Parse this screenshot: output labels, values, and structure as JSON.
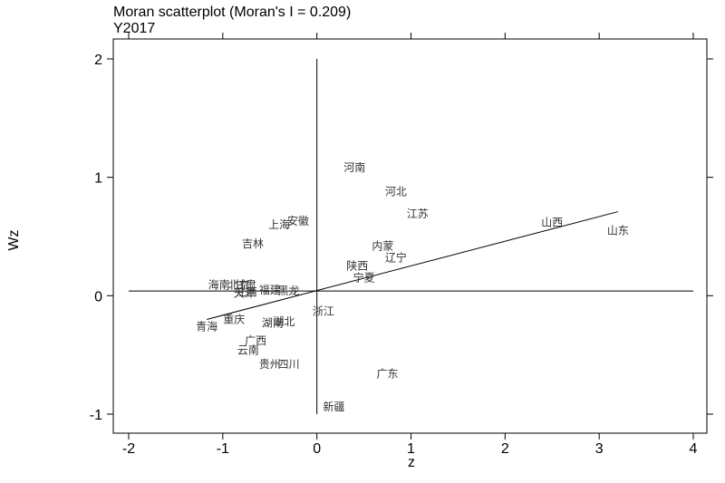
{
  "chart_data": {
    "type": "scatter",
    "title": "Moran scatterplot (Moran's I = 0.209)",
    "subtitle": "Y2017",
    "xlabel": "z",
    "ylabel": "Wz",
    "xlim": [
      -2.1,
      4.1
    ],
    "ylim": [
      -1.1,
      2.1
    ],
    "xticks": [
      -2,
      -1,
      0,
      1,
      2,
      3,
      4
    ],
    "xtick_labels": [
      "-2",
      "-1",
      "0",
      "1",
      "2",
      "3",
      "4"
    ],
    "yticks": [
      -1,
      0,
      1,
      2
    ],
    "ytick_labels": [
      "-1",
      "0",
      "1",
      "2"
    ],
    "grid": false,
    "reference_lines": {
      "vertical_x": 0,
      "horizontal_y": 0.04,
      "vertical_range": [
        -1,
        2
      ],
      "horizontal_range": [
        -2,
        4
      ]
    },
    "regression_line": {
      "x1": -1.17,
      "y1": -0.2,
      "x2": 3.2,
      "y2": 0.71
    },
    "points": [
      {
        "label": "河南",
        "x": 0.4,
        "y": 1.08
      },
      {
        "label": "河北",
        "x": 0.84,
        "y": 0.88
      },
      {
        "label": "江苏",
        "x": 1.07,
        "y": 0.69
      },
      {
        "label": "山西",
        "x": 2.5,
        "y": 0.62
      },
      {
        "label": "山东",
        "x": 3.2,
        "y": 0.55
      },
      {
        "label": "安徽",
        "x": -0.2,
        "y": 0.63
      },
      {
        "label": "上海",
        "x": -0.4,
        "y": 0.6
      },
      {
        "label": "吉林",
        "x": -0.68,
        "y": 0.44
      },
      {
        "label": "内蒙",
        "x": 0.7,
        "y": 0.42
      },
      {
        "label": "辽宁",
        "x": 0.84,
        "y": 0.32
      },
      {
        "label": "陕西",
        "x": 0.43,
        "y": 0.25
      },
      {
        "label": "宁夏",
        "x": 0.5,
        "y": 0.15
      },
      {
        "label": "海南",
        "x": -1.04,
        "y": 0.09
      },
      {
        "label": "北京",
        "x": -0.83,
        "y": 0.09
      },
      {
        "label": "甘肃",
        "x": -0.76,
        "y": 0.09
      },
      {
        "label": "天津",
        "x": -0.77,
        "y": 0.02
      },
      {
        "label": "江西",
        "x": -0.75,
        "y": 0.03
      },
      {
        "label": "福建",
        "x": -0.5,
        "y": 0.05
      },
      {
        "label": "黑龙",
        "x": -0.3,
        "y": 0.04
      },
      {
        "label": "浙江",
        "x": 0.07,
        "y": -0.13
      },
      {
        "label": "重庆",
        "x": -0.88,
        "y": -0.2
      },
      {
        "label": "青海",
        "x": -1.17,
        "y": -0.26
      },
      {
        "label": "湖北",
        "x": -0.35,
        "y": -0.22
      },
      {
        "label": "湖南",
        "x": -0.47,
        "y": -0.23
      },
      {
        "label": "广西",
        "x": -0.65,
        "y": -0.38
      },
      {
        "label": "云南",
        "x": -0.73,
        "y": -0.46
      },
      {
        "label": "贵州",
        "x": -0.5,
        "y": -0.58
      },
      {
        "label": "四川",
        "x": -0.3,
        "y": -0.58
      },
      {
        "label": "广东",
        "x": 0.75,
        "y": -0.66
      },
      {
        "label": "新疆",
        "x": 0.18,
        "y": -0.94
      }
    ]
  }
}
